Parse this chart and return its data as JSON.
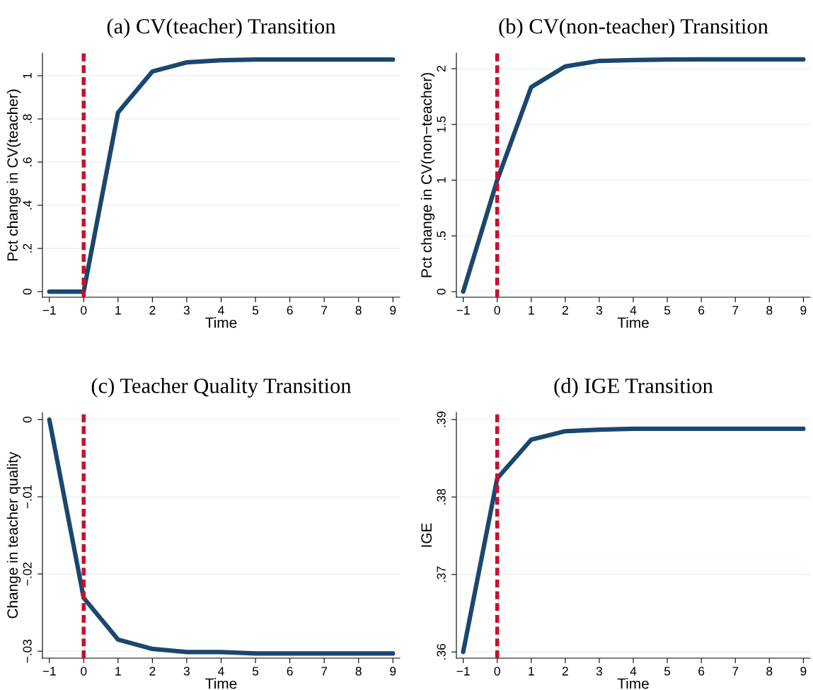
{
  "chart_data": [
    {
      "type": "line",
      "title": "(a) CV(teacher) Transition",
      "xlabel": "Time",
      "ylabel": "Pct change in CV(teacher)",
      "x": [
        -1,
        0,
        1,
        2,
        3,
        4,
        5,
        6,
        7,
        8,
        9
      ],
      "series": [
        {
          "color": "#1a476f",
          "values": [
            0,
            0,
            0.83,
            1.02,
            1.062,
            1.072,
            1.075,
            1.075,
            1.075,
            1.075,
            1.075
          ]
        }
      ],
      "xlim": [
        -1.2,
        9.2
      ],
      "xticks": [
        -1,
        0,
        1,
        2,
        3,
        4,
        5,
        6,
        7,
        8,
        9
      ],
      "ylim": [
        -0.026,
        1.105
      ],
      "yticks": [
        0,
        {
          "value": 0.2,
          "label": ".2"
        },
        {
          "value": 0.4,
          "label": ".4"
        },
        {
          "value": 0.6,
          "label": ".6"
        },
        {
          "value": 0.8,
          "label": ".8"
        },
        1
      ],
      "grid": "y",
      "marker": "none",
      "line_style": "solid",
      "legend": false,
      "ref_lines": [
        {
          "axis": "x",
          "value": 0,
          "color": "#c8102e",
          "line_style": "dashed"
        }
      ]
    },
    {
      "type": "line",
      "title": "(b) CV(non-teacher) Transition",
      "xlabel": "Time",
      "ylabel": "Pct change in CV(non−teacher)",
      "x": [
        -1,
        0,
        1,
        2,
        3,
        4,
        5,
        6,
        7,
        8,
        9
      ],
      "series": [
        {
          "color": "#1a476f",
          "values": [
            0,
            1.0,
            1.835,
            2.02,
            2.07,
            2.078,
            2.082,
            2.083,
            2.083,
            2.083,
            2.083
          ]
        }
      ],
      "xlim": [
        -1.2,
        9.2
      ],
      "xticks": [
        -1,
        0,
        1,
        2,
        3,
        4,
        5,
        6,
        7,
        8,
        9
      ],
      "ylim": [
        -0.05,
        2.14
      ],
      "yticks": [
        0,
        {
          "value": 0.5,
          "label": ".5"
        },
        1,
        1.5,
        2
      ],
      "grid": "y",
      "marker": "none",
      "line_style": "solid",
      "legend": false,
      "ref_lines": [
        {
          "axis": "x",
          "value": 0,
          "color": "#c8102e",
          "line_style": "dashed"
        }
      ]
    },
    {
      "type": "line",
      "title": "(c) Teacher Quality Transition",
      "xlabel": "Time",
      "ylabel": "Change in teacher quality",
      "x": [
        -1,
        0,
        1,
        2,
        3,
        4,
        5,
        6,
        7,
        8,
        9
      ],
      "series": [
        {
          "color": "#1a476f",
          "values": [
            0,
            -0.0231,
            -0.0285,
            -0.0297,
            -0.0301,
            -0.0301,
            -0.0303,
            -0.0303,
            -0.0303,
            -0.0303,
            -0.0303
          ]
        }
      ],
      "xlim": [
        -1.2,
        9.2
      ],
      "xticks": [
        -1,
        0,
        1,
        2,
        3,
        4,
        5,
        6,
        7,
        8,
        9
      ],
      "ylim": [
        -0.0309,
        0.0009
      ],
      "yticks": [
        {
          "value": -0.03,
          "label": "−.03"
        },
        {
          "value": -0.02,
          "label": "−.02"
        },
        {
          "value": -0.01,
          "label": "−.01"
        },
        0
      ],
      "grid": "y",
      "marker": "none",
      "line_style": "solid",
      "legend": false,
      "ref_lines": [
        {
          "axis": "x",
          "value": 0,
          "color": "#c8102e",
          "line_style": "dashed"
        }
      ]
    },
    {
      "type": "line",
      "title": "(d) IGE Transition",
      "xlabel": "Time",
      "ylabel": "IGE",
      "x": [
        -1,
        0,
        1,
        2,
        3,
        4,
        5,
        6,
        7,
        8,
        9
      ],
      "series": [
        {
          "color": "#1a476f",
          "values": [
            0.36,
            0.3824,
            0.3874,
            0.3885,
            0.3887,
            0.3888,
            0.3888,
            0.3888,
            0.3888,
            0.3888,
            0.3888
          ]
        }
      ],
      "xlim": [
        -1.2,
        9.2
      ],
      "xticks": [
        -1,
        0,
        1,
        2,
        3,
        4,
        5,
        6,
        7,
        8,
        9
      ],
      "ylim": [
        0.3592,
        0.3909
      ],
      "yticks": [
        {
          "value": 0.36,
          "label": ".36"
        },
        {
          "value": 0.37,
          "label": ".37"
        },
        {
          "value": 0.38,
          "label": ".38"
        },
        {
          "value": 0.39,
          "label": ".39"
        }
      ],
      "grid": "y",
      "marker": "none",
      "line_style": "solid",
      "legend": false,
      "ref_lines": [
        {
          "axis": "x",
          "value": 0,
          "color": "#c8102e",
          "line_style": "dashed"
        }
      ]
    }
  ]
}
